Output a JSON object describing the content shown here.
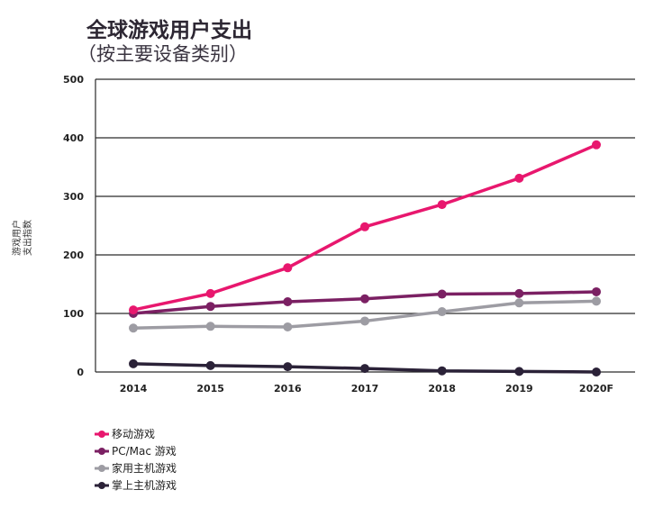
{
  "chart_data": {
    "type": "line",
    "title": "全球游戏用户支出",
    "subtitle": "（按主要设备类别）",
    "ylabel": "游戏用户支出指数",
    "ylabel_lines": [
      "游戏用户",
      "支出指数"
    ],
    "xlabel": "",
    "categories": [
      "2014",
      "2015",
      "2016",
      "2017",
      "2018",
      "2019",
      "2020F"
    ],
    "ylim": [
      0,
      500
    ],
    "yticks": [
      0,
      100,
      200,
      300,
      400,
      500
    ],
    "grid": "horizontal",
    "legend_position": "bottom-left",
    "series": [
      {
        "name": "移动游戏",
        "color": "#e8176e",
        "values": [
          106,
          134,
          178,
          248,
          286,
          331,
          388
        ]
      },
      {
        "name": "PC/Mac 游戏",
        "color": "#7b2063",
        "values": [
          100,
          112,
          120,
          125,
          133,
          134,
          137
        ]
      },
      {
        "name": "家用主机游戏",
        "color": "#9d9ca3",
        "values": [
          75,
          78,
          77,
          87,
          103,
          118,
          121
        ]
      },
      {
        "name": "掌上主机游戏",
        "color": "#2b2238",
        "values": [
          14,
          11,
          9,
          6,
          2,
          1,
          0
        ]
      }
    ]
  }
}
